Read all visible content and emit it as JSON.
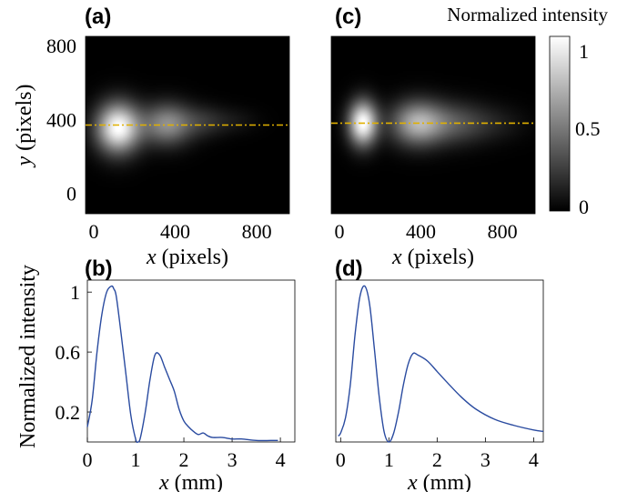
{
  "panels": {
    "a": "(a)",
    "b": "(b)",
    "c": "(c)",
    "d": "(d)"
  },
  "colorbar": {
    "title": "Normalized intensity",
    "ticks": [
      "1",
      "0.5",
      "0"
    ],
    "range": [
      0,
      1
    ],
    "colormap": "gray",
    "line_color": "#e0b000"
  },
  "chart_data": [
    {
      "type": "heatmap",
      "panel": "(a)",
      "xlabel_var": "x",
      "xlabel_unit": " (pixels)",
      "ylabel_var": "y",
      "ylabel_unit": " (pixels)",
      "xlim": [
        -40,
        960
      ],
      "ylim": [
        850,
        -110
      ],
      "x_ticks": [
        "0",
        "400",
        "800"
      ],
      "y_ticks": [
        "0",
        "400",
        "800"
      ],
      "dashed_line_y": 370,
      "lobes": [
        {
          "x": 120,
          "y": 355,
          "sx": 75,
          "sy": 95,
          "amp": 1.0
        },
        {
          "x": 360,
          "y": 375,
          "sx": 85,
          "sy": 80,
          "amp": 0.55
        },
        {
          "x": 540,
          "y": 390,
          "sx": 80,
          "sy": 60,
          "amp": 0.18
        },
        {
          "x": 700,
          "y": 395,
          "sx": 80,
          "sy": 50,
          "amp": 0.07
        }
      ]
    },
    {
      "type": "heatmap",
      "panel": "(c)",
      "xlabel_var": "x",
      "xlabel_unit": " (pixels)",
      "xlim": [
        -40,
        960
      ],
      "ylim": [
        850,
        -110
      ],
      "x_ticks": [
        "0",
        "400",
        "800"
      ],
      "dashed_line_y": 380,
      "lobes": [
        {
          "x": 115,
          "y": 380,
          "sx": 50,
          "sy": 85,
          "amp": 1.0
        },
        {
          "x": 380,
          "y": 380,
          "sx": 90,
          "sy": 85,
          "amp": 0.65
        },
        {
          "x": 560,
          "y": 380,
          "sx": 110,
          "sy": 80,
          "amp": 0.3
        },
        {
          "x": 760,
          "y": 380,
          "sx": 110,
          "sy": 70,
          "amp": 0.1
        }
      ]
    },
    {
      "type": "line",
      "panel": "(b)",
      "xlabel_var": "x",
      "xlabel_unit": " (mm)",
      "ylabel": "Normalized intensity",
      "xlim": [
        0,
        4.3
      ],
      "ylim": [
        0,
        1.08
      ],
      "x_ticks": [
        "0",
        "1",
        "2",
        "3",
        "4"
      ],
      "y_ticks": [
        "1",
        "0.6",
        "0.2"
      ],
      "x": [
        0.0,
        0.1,
        0.2,
        0.3,
        0.4,
        0.5,
        0.55,
        0.6,
        0.7,
        0.8,
        0.9,
        1.0,
        1.05,
        1.1,
        1.2,
        1.3,
        1.4,
        1.5,
        1.6,
        1.7,
        1.8,
        1.9,
        2.0,
        2.1,
        2.2,
        2.3,
        2.4,
        2.5,
        2.6,
        2.8,
        3.0,
        3.2,
        3.5,
        3.8,
        3.95
      ],
      "y": [
        0.1,
        0.28,
        0.6,
        0.85,
        1.0,
        1.04,
        1.02,
        0.97,
        0.72,
        0.45,
        0.18,
        0.02,
        0.0,
        0.03,
        0.2,
        0.42,
        0.58,
        0.58,
        0.5,
        0.42,
        0.34,
        0.22,
        0.14,
        0.1,
        0.07,
        0.05,
        0.06,
        0.04,
        0.03,
        0.03,
        0.02,
        0.02,
        0.01,
        0.01,
        0.01
      ],
      "color": "#2a4ba0"
    },
    {
      "type": "line",
      "panel": "(d)",
      "xlabel_var": "x",
      "xlabel_unit": " (mm)",
      "xlim": [
        -0.1,
        4.2
      ],
      "ylim": [
        0,
        1.08
      ],
      "x_ticks": [
        "0",
        "1",
        "2",
        "3",
        "4"
      ],
      "x": [
        -0.05,
        0.0,
        0.1,
        0.2,
        0.3,
        0.4,
        0.5,
        0.6,
        0.7,
        0.8,
        0.9,
        1.0,
        1.1,
        1.2,
        1.3,
        1.4,
        1.5,
        1.6,
        1.8,
        2.0,
        2.2,
        2.5,
        2.8,
        3.2,
        3.6,
        4.0,
        4.2
      ],
      "y": [
        0.04,
        0.06,
        0.16,
        0.38,
        0.72,
        0.97,
        1.04,
        0.92,
        0.62,
        0.3,
        0.07,
        0.0,
        0.06,
        0.2,
        0.38,
        0.52,
        0.59,
        0.58,
        0.54,
        0.47,
        0.4,
        0.3,
        0.22,
        0.15,
        0.11,
        0.08,
        0.07
      ],
      "color": "#2a4ba0"
    }
  ]
}
